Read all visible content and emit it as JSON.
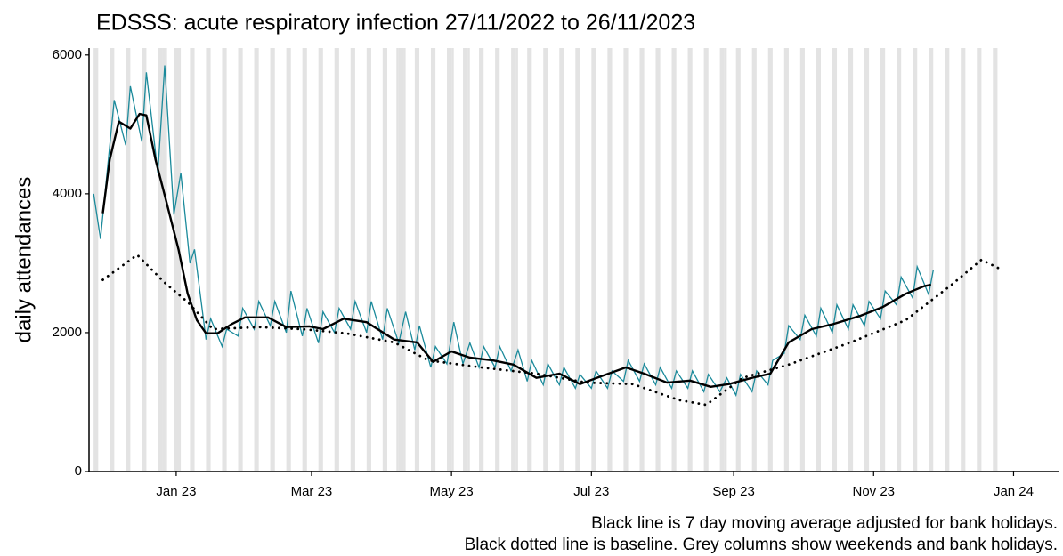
{
  "chart_data": {
    "type": "line",
    "title": "EDSSS: acute respiratory infection 27/11/2022 to 26/11/2023",
    "y_label": "daily attendances",
    "annotations": [
      "Black line is 7 day moving average adjusted for bank holidays.",
      "Black dotted line is baseline. Grey columns show weekends and bank holidays."
    ],
    "xlim": [
      "2022-11-24",
      "2024-01-21"
    ],
    "ylim": [
      0,
      6100
    ],
    "xticks": [
      {
        "value": "2023-01-01",
        "label": "Jan 23"
      },
      {
        "value": "2023-03-01",
        "label": "Mar 23"
      },
      {
        "value": "2023-05-01",
        "label": "May 23"
      },
      {
        "value": "2023-07-01",
        "label": "Jul 23"
      },
      {
        "value": "2023-09-01",
        "label": "Sep 23"
      },
      {
        "value": "2023-11-01",
        "label": "Nov 23"
      },
      {
        "value": "2024-01-01",
        "label": "Jan 24"
      }
    ],
    "yticks": [
      0,
      2000,
      4000,
      6000
    ],
    "shade_color": "#e3e3e3",
    "weekends": [
      "2022-11-26",
      "2022-12-03",
      "2022-12-10",
      "2022-12-17",
      "2022-12-24",
      "2022-12-31",
      "2023-01-07",
      "2023-01-14",
      "2023-01-21",
      "2023-01-28",
      "2023-02-04",
      "2023-02-11",
      "2023-02-18",
      "2023-02-25",
      "2023-03-04",
      "2023-03-11",
      "2023-03-18",
      "2023-03-25",
      "2023-04-01",
      "2023-04-08",
      "2023-04-15",
      "2023-04-22",
      "2023-04-29",
      "2023-05-06",
      "2023-05-13",
      "2023-05-20",
      "2023-05-27",
      "2023-06-03",
      "2023-06-10",
      "2023-06-17",
      "2023-06-24",
      "2023-07-01",
      "2023-07-08",
      "2023-07-15",
      "2023-07-22",
      "2023-07-29",
      "2023-08-05",
      "2023-08-12",
      "2023-08-19",
      "2023-08-26",
      "2023-09-02",
      "2023-09-09",
      "2023-09-16",
      "2023-09-23",
      "2023-09-30",
      "2023-10-07",
      "2023-10-14",
      "2023-10-21",
      "2023-10-28",
      "2023-11-04",
      "2023-11-11",
      "2023-11-18",
      "2023-11-25",
      "2023-12-02",
      "2023-12-09",
      "2023-12-16",
      "2023-12-23"
    ],
    "bank_holidays": [
      "2022-12-26",
      "2022-12-27",
      "2023-01-02",
      "2023-04-07",
      "2023-04-10",
      "2023-05-01",
      "2023-05-08",
      "2023-05-29",
      "2023-08-28"
    ],
    "series": [
      {
        "color": "#1b8a9b",
        "style": "thin",
        "x": [
          "2022-11-26",
          "2022-11-29",
          "2022-12-05",
          "2022-12-10",
          "2022-12-12",
          "2022-12-17",
          "2022-12-19",
          "2022-12-24",
          "2022-12-27",
          "2022-12-31",
          "2023-01-03",
          "2023-01-07",
          "2023-01-09",
          "2023-01-14",
          "2023-01-16",
          "2023-01-21",
          "2023-01-23",
          "2023-01-28",
          "2023-01-30",
          "2023-02-04",
          "2023-02-06",
          "2023-02-11",
          "2023-02-13",
          "2023-02-18",
          "2023-02-20",
          "2023-02-25",
          "2023-02-27",
          "2023-03-04",
          "2023-03-06",
          "2023-03-11",
          "2023-03-13",
          "2023-03-18",
          "2023-03-20",
          "2023-03-25",
          "2023-03-27",
          "2023-04-01",
          "2023-04-03",
          "2023-04-08",
          "2023-04-11",
          "2023-04-15",
          "2023-04-17",
          "2023-04-22",
          "2023-04-24",
          "2023-04-29",
          "2023-05-02",
          "2023-05-06",
          "2023-05-09",
          "2023-05-13",
          "2023-05-15",
          "2023-05-20",
          "2023-05-22",
          "2023-05-27",
          "2023-05-30",
          "2023-06-03",
          "2023-06-05",
          "2023-06-10",
          "2023-06-12",
          "2023-06-17",
          "2023-06-19",
          "2023-06-24",
          "2023-06-26",
          "2023-07-01",
          "2023-07-03",
          "2023-07-08",
          "2023-07-10",
          "2023-07-15",
          "2023-07-17",
          "2023-07-22",
          "2023-07-24",
          "2023-07-29",
          "2023-07-31",
          "2023-08-05",
          "2023-08-07",
          "2023-08-12",
          "2023-08-14",
          "2023-08-19",
          "2023-08-21",
          "2023-08-26",
          "2023-08-29",
          "2023-09-02",
          "2023-09-04",
          "2023-09-09",
          "2023-09-11",
          "2023-09-16",
          "2023-09-18",
          "2023-09-23",
          "2023-09-25",
          "2023-09-30",
          "2023-10-02",
          "2023-10-07",
          "2023-10-09",
          "2023-10-14",
          "2023-10-16",
          "2023-10-21",
          "2023-10-23",
          "2023-10-28",
          "2023-10-30",
          "2023-11-04",
          "2023-11-06",
          "2023-11-11",
          "2023-11-13",
          "2023-11-18",
          "2023-11-20",
          "2023-11-25",
          "2023-11-27"
        ],
        "values": [
          4000,
          3350,
          5350,
          4700,
          5550,
          4750,
          5750,
          4300,
          5850,
          3700,
          4300,
          3000,
          3200,
          1900,
          2200,
          1800,
          2050,
          1950,
          2350,
          2050,
          2450,
          2100,
          2450,
          2000,
          2600,
          1950,
          2350,
          1850,
          2300,
          2000,
          2350,
          2050,
          2450,
          2000,
          2450,
          1900,
          2350,
          1850,
          2300,
          1750,
          2100,
          1500,
          1800,
          1550,
          2150,
          1550,
          1850,
          1500,
          1800,
          1500,
          1800,
          1450,
          1750,
          1300,
          1600,
          1250,
          1550,
          1250,
          1500,
          1200,
          1400,
          1200,
          1450,
          1200,
          1450,
          1300,
          1600,
          1300,
          1550,
          1250,
          1500,
          1200,
          1450,
          1200,
          1450,
          1150,
          1400,
          1150,
          1350,
          1100,
          1400,
          1150,
          1450,
          1250,
          1600,
          1700,
          2100,
          1900,
          2250,
          1950,
          2350,
          2000,
          2400,
          2050,
          2400,
          2100,
          2450,
          2200,
          2600,
          2400,
          2800,
          2500,
          2950,
          2550,
          2900
        ]
      },
      {
        "color": "#000000",
        "style": "solid",
        "x": [
          "2022-11-30",
          "2022-12-03",
          "2022-12-07",
          "2022-12-12",
          "2022-12-16",
          "2022-12-19",
          "2022-12-23",
          "2022-12-28",
          "2023-01-02",
          "2023-01-06",
          "2023-01-10",
          "2023-01-14",
          "2023-01-19",
          "2023-01-25",
          "2023-01-31",
          "2023-02-10",
          "2023-02-18",
          "2023-02-28",
          "2023-03-06",
          "2023-03-15",
          "2023-03-25",
          "2023-04-06",
          "2023-04-16",
          "2023-04-23",
          "2023-05-01",
          "2023-05-09",
          "2023-05-19",
          "2023-05-28",
          "2023-06-07",
          "2023-06-17",
          "2023-06-26",
          "2023-07-06",
          "2023-07-16",
          "2023-07-24",
          "2023-08-03",
          "2023-08-13",
          "2023-08-22",
          "2023-08-30",
          "2023-09-09",
          "2023-09-17",
          "2023-09-25",
          "2023-10-05",
          "2023-10-14",
          "2023-10-26",
          "2023-11-05",
          "2023-11-15",
          "2023-11-23",
          "2023-11-26"
        ],
        "values": [
          3720,
          4490,
          5040,
          4940,
          5150,
          5130,
          4490,
          3850,
          3200,
          2560,
          2180,
          1990,
          1990,
          2120,
          2220,
          2220,
          2080,
          2090,
          2050,
          2200,
          2150,
          1900,
          1860,
          1580,
          1730,
          1640,
          1600,
          1540,
          1350,
          1410,
          1260,
          1380,
          1500,
          1410,
          1280,
          1310,
          1220,
          1260,
          1350,
          1410,
          1860,
          2050,
          2120,
          2240,
          2370,
          2560,
          2670,
          2690
        ]
      },
      {
        "color": "#000000",
        "style": "dotted",
        "x": [
          "2022-11-30",
          "2022-12-15",
          "2022-12-27",
          "2023-01-06",
          "2023-01-17",
          "2023-02-06",
          "2023-02-25",
          "2023-03-16",
          "2023-04-06",
          "2023-04-21",
          "2023-05-14",
          "2023-06-07",
          "2023-06-29",
          "2023-07-19",
          "2023-08-08",
          "2023-08-20",
          "2023-09-05",
          "2023-09-25",
          "2023-10-22",
          "2023-11-15",
          "2023-12-05",
          "2023-12-18",
          "2023-12-26"
        ],
        "values": [
          2760,
          3120,
          2720,
          2440,
          2050,
          2080,
          2050,
          1990,
          1860,
          1600,
          1500,
          1410,
          1280,
          1260,
          1030,
          960,
          1350,
          1540,
          1860,
          2180,
          2690,
          3050,
          2920
        ]
      }
    ]
  }
}
